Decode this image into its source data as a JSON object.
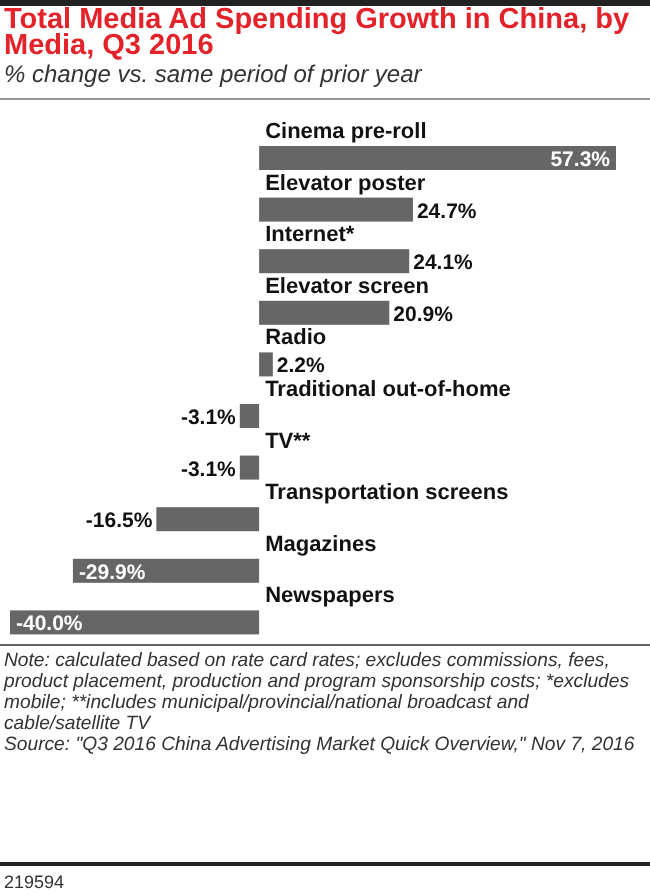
{
  "chart_data": {
    "type": "bar",
    "orientation": "horizontal",
    "title": "Total Media Ad Spending Growth in China, by Media, Q3 2016",
    "subtitle": "% change vs. same period of prior year",
    "categories": [
      "Cinema pre-roll",
      "Elevator poster",
      "Internet*",
      "Elevator screen",
      "Radio",
      "Traditional out-of-home",
      "TV**",
      "Transportation screens",
      "Magazines",
      "Newspapers"
    ],
    "values": [
      57.3,
      24.7,
      24.1,
      20.9,
      2.2,
      -3.1,
      -3.1,
      -16.5,
      -29.9,
      -40.0
    ],
    "value_labels": [
      "57.3%",
      "24.7%",
      "24.1%",
      "20.9%",
      "2.2%",
      "-3.1%",
      "-3.1%",
      "-16.5%",
      "-29.9%",
      "-40.0%"
    ],
    "color": "#666666",
    "annotations": [
      "Note: calculated based on rate card rates; excludes commissions, fees, product placement, production and program sponsorship costs; *excludes mobile; **includes municipal/provincial/national broadcast and cable/satellite TV",
      "Source: \"Q3 2016 China Advertising Market Quick Overview,\" Nov 7, 2016",
      "219594"
    ]
  }
}
